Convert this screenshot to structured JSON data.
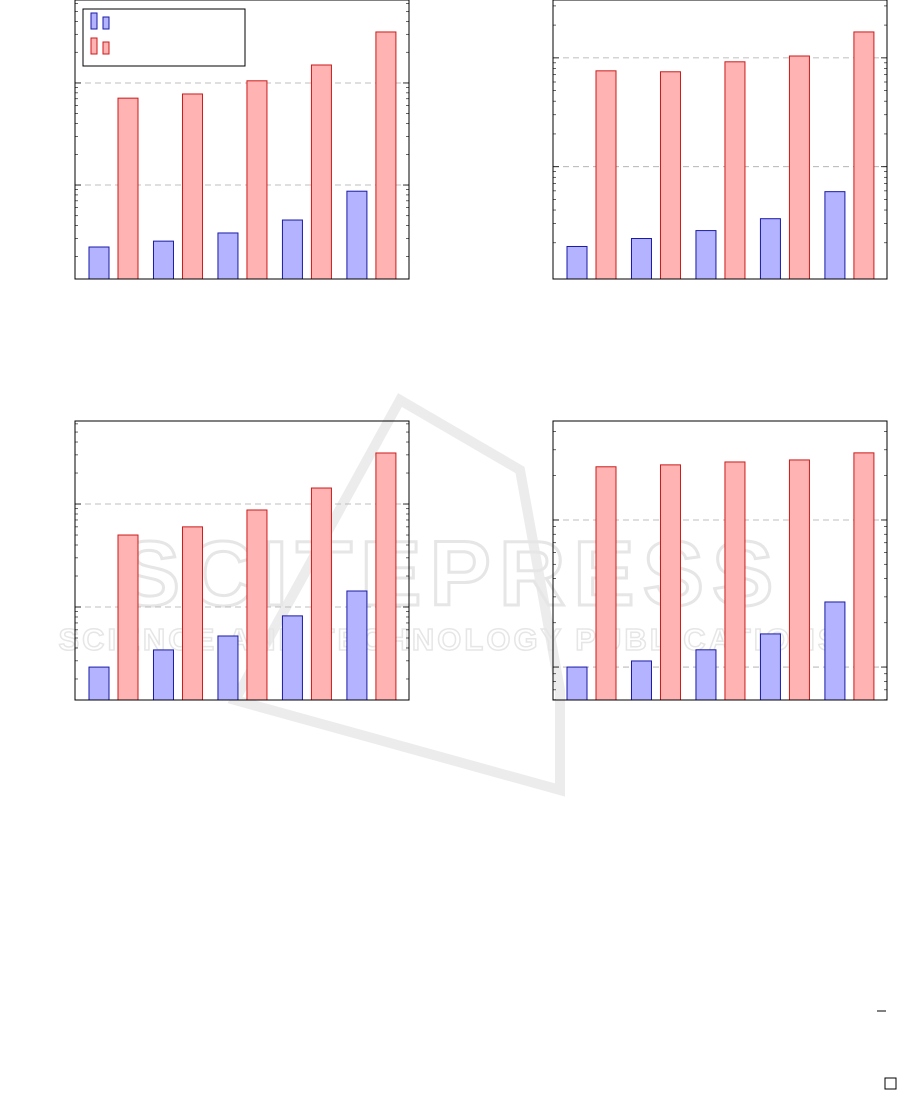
{
  "chart_data": [
    {
      "type": "bar",
      "log_scale": true,
      "grid": true,
      "legend": "upper left",
      "categories": [
        null,
        null,
        null,
        null,
        null
      ],
      "series": [
        {
          "color": "#b3b3ff",
          "edge": "#1a1aa6",
          "values": [
            2.47,
            2.82,
            3.39,
            4.54,
            8.7
          ]
        },
        {
          "color": "#ffb3b3",
          "edge": "#cc1a1a",
          "values": [
            71,
            78,
            105,
            150,
            316
          ]
        }
      ],
      "ylim": [
        1.2,
        650
      ],
      "yticks": [
        10,
        100
      ]
    },
    {
      "type": "bar",
      "log_scale": true,
      "grid": true,
      "categories": [
        null,
        null,
        null,
        null,
        null
      ],
      "series": [
        {
          "color": "#b3b3ff",
          "edge": "#1a1aa6",
          "values": [
            1.85,
            2.19,
            2.59,
            3.33,
            5.9
          ]
        },
        {
          "color": "#ffb3b3",
          "edge": "#cc1a1a",
          "values": [
            76,
            74.5,
            92,
            104,
            173
          ]
        }
      ],
      "ylim": [
        0.93,
        340
      ],
      "yticks": [
        10,
        100
      ]
    },
    {
      "type": "bar",
      "log_scale": true,
      "grid": true,
      "categories": [
        null,
        null,
        null,
        null,
        null
      ],
      "series": [
        {
          "color": "#b3b3ff",
          "edge": "#1a1aa6",
          "values": [
            2.61,
            3.83,
            5.23,
            8.2,
            14.3
          ]
        },
        {
          "color": "#ffb3b3",
          "edge": "#cc1a1a",
          "values": [
            50,
            60,
            87.5,
            143,
            313
          ]
        }
      ],
      "ylim": [
        1.25,
        640
      ],
      "yticks": [
        10,
        100
      ]
    },
    {
      "type": "bar",
      "log_scale": true,
      "grid": true,
      "categories": [
        null,
        null,
        null,
        null,
        null
      ],
      "series": [
        {
          "color": "#b3b3ff",
          "edge": "#1a1aa6",
          "values": [
            10,
            11,
            13.1,
            16.8,
            27.7
          ]
        },
        {
          "color": "#ffb3b3",
          "edge": "#cc1a1a",
          "values": [
            230,
            237,
            248,
            256,
            286
          ]
        }
      ],
      "ylim": [
        5.97,
        471
      ],
      "yticks": [
        10,
        100
      ]
    }
  ],
  "watermark": {
    "line1": "SCITEPRESS",
    "line2": "SCIENCE AND TECHNOLOGY PUBLICATIONS"
  }
}
